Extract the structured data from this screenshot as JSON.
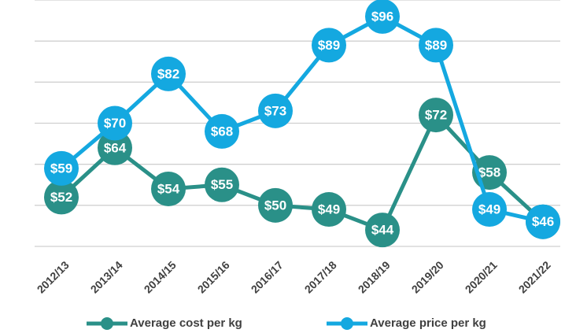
{
  "chart_data": {
    "type": "line",
    "categories": [
      "2012/13",
      "2013/14",
      "2014/15",
      "2015/16",
      "2016/17",
      "2017/18",
      "2018/19",
      "2019/20",
      "2020/21",
      "2021/22"
    ],
    "series": [
      {
        "name": "Average cost per kg",
        "color": "#2a9088",
        "values": [
          52,
          64,
          54,
          55,
          50,
          49,
          44,
          72,
          58,
          46
        ],
        "value_labels": [
          "$52",
          "$64",
          "$54",
          "$55",
          "$50",
          "$49",
          "$44",
          "$72",
          "$58",
          "$46"
        ]
      },
      {
        "name": "Average price per kg",
        "color": "#14a8e0",
        "values": [
          59,
          70,
          82,
          68,
          73,
          89,
          96,
          89,
          49,
          46
        ],
        "value_labels": [
          "$59",
          "$70",
          "$82",
          "$68",
          "$73",
          "$89",
          "$96",
          "$89",
          "$49",
          "$46"
        ]
      }
    ],
    "ylim": [
      40,
      100
    ],
    "yticks": [
      40,
      50,
      60,
      70,
      80,
      90,
      100
    ],
    "grid": true,
    "legend": "bottom"
  }
}
